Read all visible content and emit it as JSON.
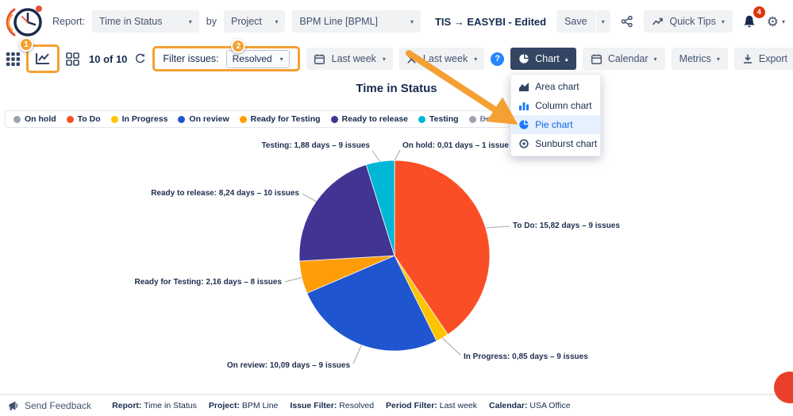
{
  "header": {
    "report_label": "Report:",
    "report_value": "Time in Status",
    "by_label": "by",
    "group_by_value": "Project",
    "project_value": "BPM Line [BPML]",
    "doc_title": "TIS → EASYBI - Edited",
    "save_label": "Save",
    "quick_tips_label": "Quick Tips",
    "notification_count": "4"
  },
  "toolbar": {
    "issue_count": "10 of 10",
    "filter_label": "Filter issues:",
    "filter_value": "Resolved",
    "date_range_value": "Last week",
    "working_period_value": "Last week",
    "help_glyph": "?",
    "chart_label": "Chart",
    "calendar_label": "Calendar",
    "metrics_label": "Metrics",
    "export_label": "Export"
  },
  "annotations": {
    "step_1": "1",
    "step_2": "2"
  },
  "chart_menu": {
    "items": [
      {
        "label": "Area chart",
        "selected": false
      },
      {
        "label": "Column chart",
        "selected": false
      },
      {
        "label": "Pie chart",
        "selected": true
      },
      {
        "label": "Sunburst chart",
        "selected": false
      }
    ]
  },
  "chart_data": {
    "type": "pie",
    "title": "Time in Status",
    "unit": "days",
    "legend_position": "top",
    "slices": [
      {
        "name": "On hold",
        "days": 0.01,
        "issues": 1,
        "label": "On hold: 0,01 days – 1 issue",
        "color": "#9ba3af"
      },
      {
        "name": "To Do",
        "days": 15.82,
        "issues": 9,
        "label": "To Do: 15,82 days – 9 issues",
        "color": "#fa4f26"
      },
      {
        "name": "In Progress",
        "days": 0.85,
        "issues": 9,
        "label": "In Progress: 0,85 days – 9 issues",
        "color": "#ffc400"
      },
      {
        "name": "On review",
        "days": 10.09,
        "issues": 9,
        "label": "On review: 10,09 days – 9 issues",
        "color": "#1f55cf"
      },
      {
        "name": "Ready for Testing",
        "days": 2.16,
        "issues": 8,
        "label": "Ready for Testing: 2,16 days – 8 issues",
        "color": "#ff9d09"
      },
      {
        "name": "Ready to release",
        "days": 8.24,
        "issues": 10,
        "label": "Ready to release: 8,24 days – 10 issues",
        "color": "#413493"
      },
      {
        "name": "Testing",
        "days": 1.88,
        "issues": 9,
        "label": "Testing: 1,88 days – 9 issues",
        "color": "#00b7d6"
      }
    ],
    "legend": [
      {
        "label": "On hold",
        "color": "#9ba3af",
        "disabled": false
      },
      {
        "label": "To Do",
        "color": "#fa4f26",
        "disabled": false
      },
      {
        "label": "In Progress",
        "color": "#ffc400",
        "disabled": false
      },
      {
        "label": "On review",
        "color": "#1f55cf",
        "disabled": false
      },
      {
        "label": "Ready for Testing",
        "color": "#ff9d09",
        "disabled": false
      },
      {
        "label": "Ready to release",
        "color": "#413493",
        "disabled": false
      },
      {
        "label": "Testing",
        "color": "#00b7d6",
        "disabled": false
      },
      {
        "label": "Done",
        "color": "#9ba3af",
        "disabled": true
      }
    ]
  },
  "icons": {
    "chevron_down": "▾",
    "chevron_up": "▴",
    "gear": "⚙"
  },
  "footer": {
    "feedback_label": "Send Feedback",
    "summary": [
      {
        "label": "Report:",
        "value": "Time in Status"
      },
      {
        "label": "Project:",
        "value": "BPM Line"
      },
      {
        "label": "Issue Filter:",
        "value": "Resolved"
      },
      {
        "label": "Period Filter:",
        "value": "Last week"
      },
      {
        "label": "Calendar:",
        "value": "USA Office"
      }
    ]
  }
}
